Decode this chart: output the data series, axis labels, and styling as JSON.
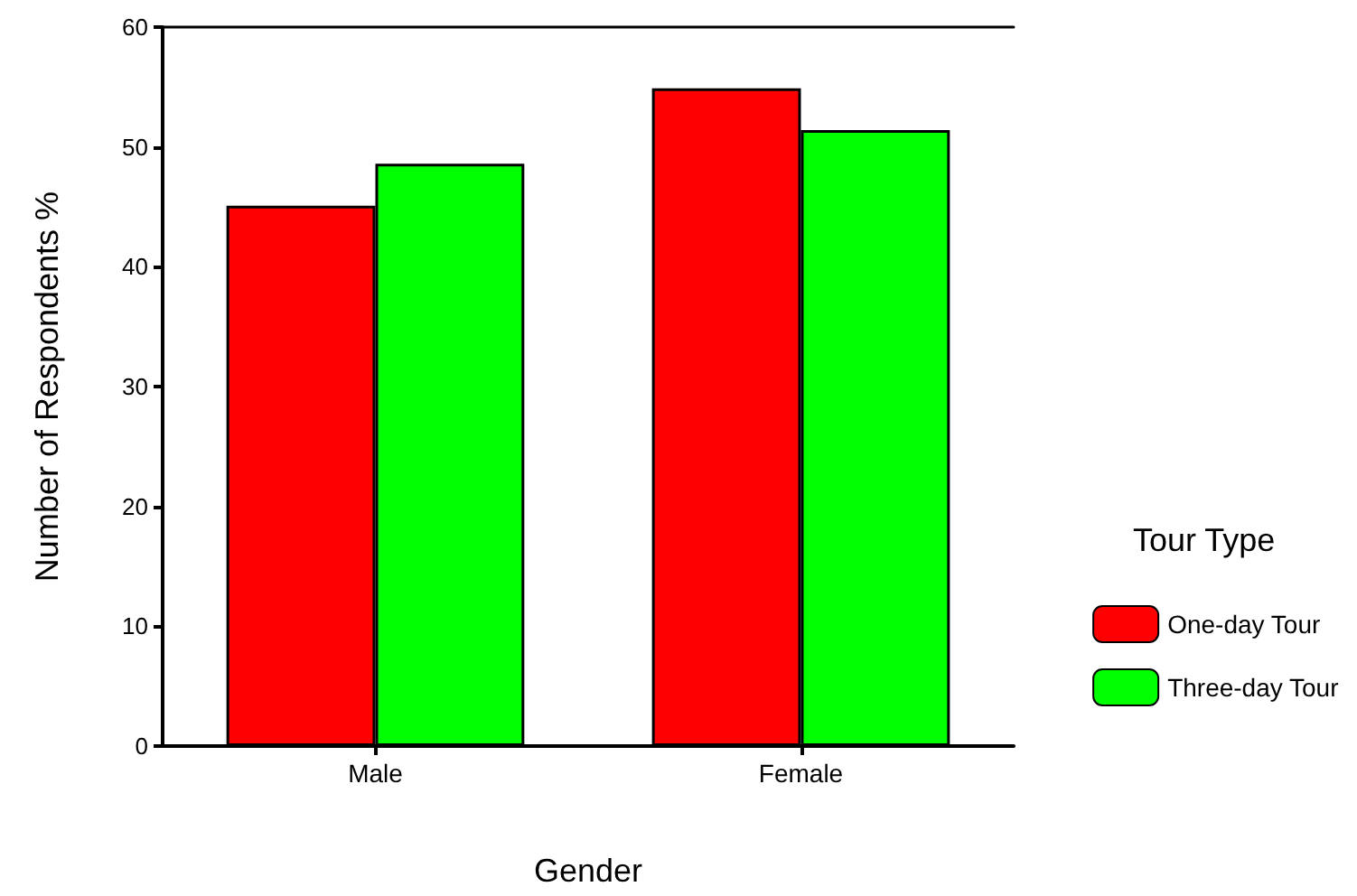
{
  "chart_data": {
    "type": "bar",
    "xlabel": "Gender",
    "ylabel": "Number of Respondents %",
    "legend_title": "Tour Type",
    "categories": [
      "Male",
      "Female"
    ],
    "series": [
      {
        "name": "One-day Tour",
        "color": "#ff0000",
        "values": [
          45.1,
          54.9
        ]
      },
      {
        "name": "Three-day Tour",
        "color": "#00ff00",
        "values": [
          48.6,
          51.4
        ]
      }
    ],
    "ylim": [
      0,
      60
    ],
    "yticks": [
      0,
      10,
      20,
      30,
      40,
      50,
      60
    ],
    "grid": false,
    "legend": "right"
  }
}
